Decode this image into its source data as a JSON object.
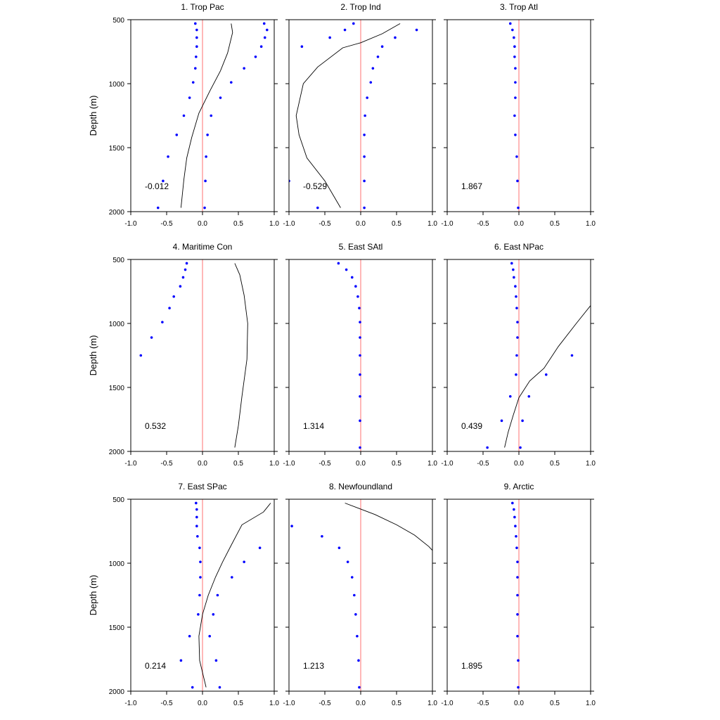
{
  "chart_data": [
    {
      "type": "scatter",
      "title": "1. Trop Pac",
      "annotation": "-0.012",
      "xlim": [
        -1.0,
        1.0
      ],
      "ylim": [
        2000,
        500
      ],
      "xticks": [
        "-1.0",
        "-0.5",
        "0.0",
        "0.5",
        "1.0"
      ],
      "yticks": [
        "500",
        "1000",
        "1500",
        "2000"
      ],
      "ylabel": "Depth (m)",
      "line": [
        [
          0.4,
          530
        ],
        [
          0.42,
          600
        ],
        [
          0.35,
          760
        ],
        [
          0.25,
          900
        ],
        [
          0.1,
          1060
        ],
        [
          -0.05,
          1230
        ],
        [
          -0.15,
          1420
        ],
        [
          -0.22,
          1580
        ],
        [
          -0.26,
          1750
        ],
        [
          -0.3,
          1970
        ]
      ],
      "dots_left": [
        [
          -0.1,
          530
        ],
        [
          -0.08,
          580
        ],
        [
          -0.08,
          640
        ],
        [
          -0.08,
          710
        ],
        [
          -0.09,
          790
        ],
        [
          -0.1,
          880
        ],
        [
          -0.13,
          990
        ],
        [
          -0.18,
          1110
        ],
        [
          -0.26,
          1250
        ],
        [
          -0.36,
          1400
        ],
        [
          -0.48,
          1570
        ],
        [
          -0.55,
          1760
        ],
        [
          -0.62,
          1970
        ]
      ],
      "dots_right": [
        [
          0.86,
          530
        ],
        [
          0.9,
          580
        ],
        [
          0.87,
          640
        ],
        [
          0.82,
          710
        ],
        [
          0.74,
          790
        ],
        [
          0.58,
          880
        ],
        [
          0.4,
          990
        ],
        [
          0.25,
          1110
        ],
        [
          0.12,
          1250
        ],
        [
          0.07,
          1400
        ],
        [
          0.05,
          1570
        ],
        [
          0.04,
          1760
        ],
        [
          0.03,
          1970
        ]
      ]
    },
    {
      "type": "scatter",
      "title": "2. Trop Ind",
      "annotation": "-0.529",
      "xlim": [
        -1.0,
        1.0
      ],
      "ylim": [
        2000,
        500
      ],
      "xticks": [
        "-1.0",
        "-0.5",
        "0.0",
        "0.5",
        "1.0"
      ],
      "yticks": [],
      "ylabel": "",
      "line": [
        [
          0.55,
          530
        ],
        [
          0.3,
          610
        ],
        [
          0.0,
          680
        ],
        [
          -0.25,
          720
        ],
        [
          -0.6,
          870
        ],
        [
          -0.8,
          1000
        ],
        [
          -0.9,
          1250
        ],
        [
          -0.86,
          1400
        ],
        [
          -0.75,
          1580
        ],
        [
          -0.5,
          1760
        ],
        [
          -0.28,
          1970
        ]
      ],
      "dots_left": [
        [
          0.78,
          580
        ],
        [
          0.48,
          640
        ],
        [
          0.3,
          710
        ],
        [
          0.24,
          790
        ],
        [
          0.17,
          880
        ],
        [
          0.14,
          990
        ],
        [
          0.09,
          1110
        ],
        [
          0.06,
          1250
        ],
        [
          0.05,
          1400
        ],
        [
          0.05,
          1570
        ],
        [
          0.05,
          1760
        ],
        [
          0.05,
          1970
        ]
      ],
      "dots_right": [
        [
          -0.1,
          530
        ],
        [
          -0.22,
          580
        ],
        [
          -0.43,
          640
        ],
        [
          -0.82,
          710
        ],
        [
          -1.0,
          1760
        ],
        [
          -0.6,
          1970
        ]
      ]
    },
    {
      "type": "scatter",
      "title": "3. Trop Atl",
      "annotation": "1.867",
      "xlim": [
        -1.0,
        1.0
      ],
      "ylim": [
        2000,
        500
      ],
      "xticks": [
        "-1.0",
        "-0.5",
        "0.0",
        "0.5",
        "1.0"
      ],
      "yticks": [],
      "ylabel": "",
      "line": [],
      "dots_left": [
        [
          -0.12,
          530
        ],
        [
          -0.09,
          580
        ],
        [
          -0.07,
          640
        ],
        [
          -0.06,
          710
        ],
        [
          -0.06,
          790
        ],
        [
          -0.05,
          880
        ],
        [
          -0.05,
          990
        ],
        [
          -0.05,
          1110
        ],
        [
          -0.06,
          1250
        ],
        [
          -0.05,
          1400
        ],
        [
          -0.03,
          1570
        ],
        [
          -0.02,
          1760
        ],
        [
          -0.01,
          1970
        ]
      ],
      "dots_right": []
    },
    {
      "type": "scatter",
      "title": "4. Maritime Con",
      "annotation": "0.532",
      "xlim": [
        -1.0,
        1.0
      ],
      "ylim": [
        2000,
        500
      ],
      "xticks": [
        "-1.0",
        "-0.5",
        "0.0",
        "0.5",
        "1.0"
      ],
      "yticks": [
        "500",
        "1000",
        "1500",
        "2000"
      ],
      "ylabel": "Depth (m)",
      "line": [
        [
          0.45,
          530
        ],
        [
          0.52,
          620
        ],
        [
          0.58,
          780
        ],
        [
          0.63,
          1000
        ],
        [
          0.62,
          1280
        ],
        [
          0.55,
          1570
        ],
        [
          0.5,
          1800
        ],
        [
          0.45,
          1970
        ]
      ],
      "dots_left": [
        [
          -0.22,
          530
        ],
        [
          -0.24,
          580
        ],
        [
          -0.27,
          640
        ],
        [
          -0.31,
          710
        ],
        [
          -0.4,
          790
        ],
        [
          -0.46,
          880
        ],
        [
          -0.56,
          990
        ],
        [
          -0.71,
          1110
        ],
        [
          -0.86,
          1250
        ]
      ],
      "dots_right": []
    },
    {
      "type": "scatter",
      "title": "5. East SAtl",
      "annotation": "1.314",
      "xlim": [
        -1.0,
        1.0
      ],
      "ylim": [
        2000,
        500
      ],
      "xticks": [
        "-1.0",
        "-0.5",
        "0.0",
        "0.5",
        "1.0"
      ],
      "yticks": [],
      "ylabel": "",
      "line": [],
      "dots_left": [
        [
          -0.31,
          530
        ],
        [
          -0.2,
          580
        ],
        [
          -0.12,
          640
        ],
        [
          -0.07,
          710
        ],
        [
          -0.04,
          790
        ],
        [
          -0.02,
          880
        ],
        [
          -0.01,
          990
        ],
        [
          -0.01,
          1110
        ],
        [
          -0.01,
          1250
        ],
        [
          -0.01,
          1400
        ],
        [
          -0.01,
          1570
        ],
        [
          -0.01,
          1760
        ],
        [
          -0.01,
          1970
        ]
      ],
      "dots_right": []
    },
    {
      "type": "scatter",
      "title": "6. East NPac",
      "annotation": "0.439",
      "xlim": [
        -1.0,
        1.0
      ],
      "ylim": [
        2000,
        500
      ],
      "xticks": [
        "-1.0",
        "-0.5",
        "0.0",
        "0.5",
        "1.0"
      ],
      "yticks": [],
      "ylabel": "",
      "line": [
        [
          1.0,
          860
        ],
        [
          0.8,
          1000
        ],
        [
          0.55,
          1180
        ],
        [
          0.35,
          1350
        ],
        [
          0.15,
          1450
        ],
        [
          0.0,
          1580
        ],
        [
          -0.08,
          1720
        ],
        [
          -0.15,
          1850
        ],
        [
          -0.2,
          1970
        ]
      ],
      "dots_left": [
        [
          -0.1,
          530
        ],
        [
          -0.08,
          580
        ],
        [
          -0.07,
          640
        ],
        [
          -0.05,
          710
        ],
        [
          -0.04,
          790
        ],
        [
          -0.03,
          880
        ],
        [
          -0.02,
          990
        ],
        [
          -0.02,
          1110
        ],
        [
          -0.03,
          1250
        ],
        [
          -0.04,
          1400
        ],
        [
          -0.12,
          1570
        ],
        [
          -0.24,
          1760
        ],
        [
          -0.44,
          1970
        ]
      ],
      "dots_right": [
        [
          0.74,
          1250
        ],
        [
          0.38,
          1400
        ],
        [
          0.14,
          1570
        ],
        [
          0.05,
          1760
        ],
        [
          0.02,
          1970
        ]
      ]
    },
    {
      "type": "scatter",
      "title": "7. East SPac",
      "annotation": "0.214",
      "xlim": [
        -1.0,
        1.0
      ],
      "ylim": [
        2000,
        500
      ],
      "xticks": [
        "-1.0",
        "-0.5",
        "0.0",
        "0.5",
        "1.0"
      ],
      "yticks": [
        "500",
        "1000",
        "1500",
        "2000"
      ],
      "ylabel": "Depth (m)",
      "line": [
        [
          0.95,
          530
        ],
        [
          0.85,
          600
        ],
        [
          0.55,
          700
        ],
        [
          0.4,
          860
        ],
        [
          0.28,
          990
        ],
        [
          0.18,
          1110
        ],
        [
          0.08,
          1250
        ],
        [
          0.0,
          1400
        ],
        [
          -0.05,
          1570
        ],
        [
          -0.04,
          1760
        ],
        [
          0.05,
          1970
        ]
      ],
      "dots_left": [
        [
          -0.09,
          530
        ],
        [
          -0.08,
          580
        ],
        [
          -0.08,
          640
        ],
        [
          -0.08,
          710
        ],
        [
          -0.07,
          790
        ],
        [
          -0.04,
          880
        ],
        [
          -0.03,
          990
        ],
        [
          -0.03,
          1110
        ],
        [
          -0.04,
          1250
        ],
        [
          -0.06,
          1400
        ],
        [
          -0.18,
          1570
        ],
        [
          -0.3,
          1760
        ],
        [
          -0.14,
          1970
        ]
      ],
      "dots_right": [
        [
          0.8,
          880
        ],
        [
          0.58,
          990
        ],
        [
          0.41,
          1110
        ],
        [
          0.21,
          1250
        ],
        [
          0.15,
          1400
        ],
        [
          0.1,
          1570
        ],
        [
          0.19,
          1760
        ],
        [
          0.24,
          1970
        ]
      ]
    },
    {
      "type": "scatter",
      "title": "8. Newfoundland",
      "annotation": "1.213",
      "xlim": [
        -1.0,
        1.0
      ],
      "ylim": [
        2000,
        500
      ],
      "xticks": [
        "-1.0",
        "-0.5",
        "0.0",
        "0.5",
        "1.0"
      ],
      "yticks": [],
      "ylabel": "",
      "line": [
        [
          -0.22,
          530
        ],
        [
          0.2,
          620
        ],
        [
          0.5,
          700
        ],
        [
          0.75,
          780
        ],
        [
          0.95,
          870
        ],
        [
          1.0,
          900
        ]
      ],
      "dots_left": [
        [
          -0.96,
          710
        ],
        [
          -0.54,
          790
        ],
        [
          -0.3,
          880
        ],
        [
          -0.18,
          990
        ],
        [
          -0.12,
          1110
        ],
        [
          -0.09,
          1250
        ],
        [
          -0.07,
          1400
        ],
        [
          -0.05,
          1570
        ],
        [
          -0.03,
          1760
        ],
        [
          -0.02,
          1970
        ]
      ],
      "dots_right": []
    },
    {
      "type": "scatter",
      "title": "9. Arctic",
      "annotation": "1.895",
      "xlim": [
        -1.0,
        1.0
      ],
      "ylim": [
        2000,
        500
      ],
      "xticks": [
        "-1.0",
        "-0.5",
        "0.0",
        "0.5",
        "1.0"
      ],
      "yticks": [],
      "ylabel": "",
      "line": [],
      "dots_left": [
        [
          -0.09,
          530
        ],
        [
          -0.07,
          580
        ],
        [
          -0.06,
          640
        ],
        [
          -0.05,
          710
        ],
        [
          -0.04,
          790
        ],
        [
          -0.03,
          880
        ],
        [
          -0.02,
          990
        ],
        [
          -0.02,
          1110
        ],
        [
          -0.02,
          1250
        ],
        [
          -0.02,
          1400
        ],
        [
          -0.02,
          1570
        ],
        [
          -0.01,
          1760
        ],
        [
          -0.01,
          1970
        ]
      ],
      "dots_right": []
    }
  ],
  "colors": {
    "axis": "#000000",
    "zero_line": "#ff9999",
    "dots": "#0000ff",
    "curve": "#000000"
  }
}
